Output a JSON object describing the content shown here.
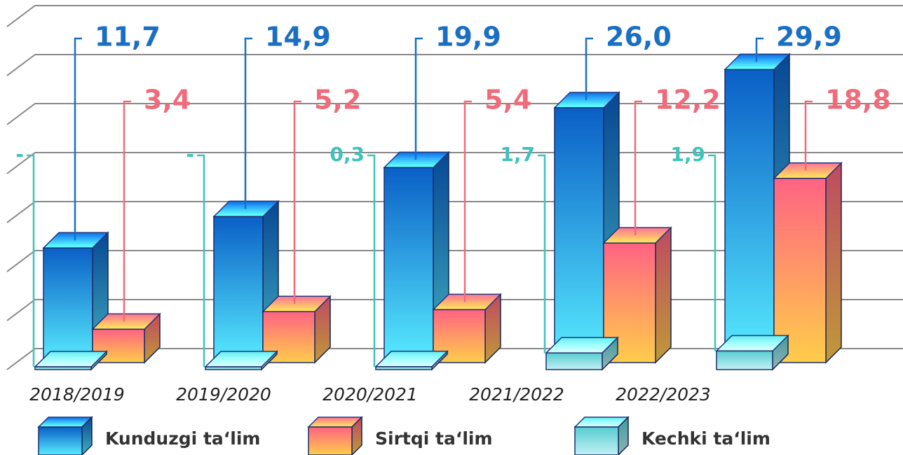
{
  "chart_data": {
    "type": "bar3d",
    "categories": [
      "2018/2019",
      "2019/2020",
      "2020/2021",
      "2021/2022",
      "2022/2023"
    ],
    "series": [
      {
        "name": "Kunduzgi taʻlim",
        "color": "#1a6fc4",
        "values": [
          11.7,
          14.9,
          19.9,
          26.0,
          29.9
        ],
        "value_labels": [
          "11,7",
          "14,9",
          "19,9",
          "26,0",
          "29,9"
        ]
      },
      {
        "name": "Sirtqi taʻlim",
        "color": "#f06b7a",
        "values": [
          3.4,
          5.2,
          5.4,
          12.2,
          18.8
        ],
        "value_labels": [
          "3,4",
          "5,2",
          "5,4",
          "12,2",
          "18,8"
        ]
      },
      {
        "name": "Kechki taʻlim",
        "color": "#3cc3bb",
        "values": [
          null,
          null,
          0.3,
          1.7,
          1.9
        ],
        "value_labels": [
          "-",
          "-",
          "0,3",
          "1,7",
          "1,9"
        ]
      }
    ],
    "ylim": [
      0,
      35
    ],
    "yticks": [
      0,
      5,
      10,
      15,
      20,
      25,
      30,
      35
    ],
    "grid": true,
    "legend": "bottom"
  }
}
